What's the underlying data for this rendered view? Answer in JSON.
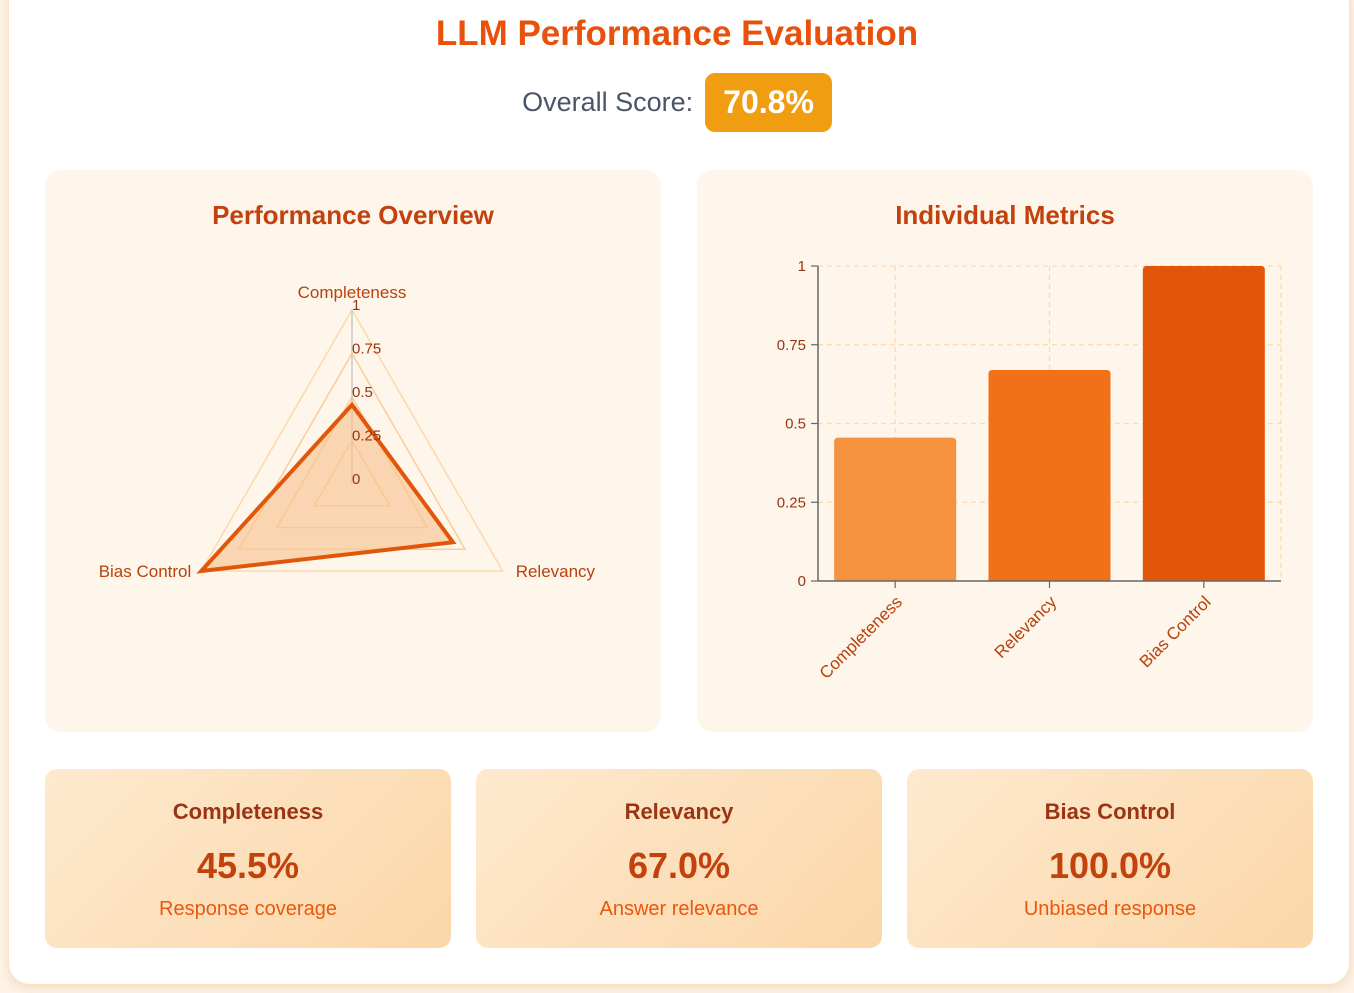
{
  "header": {
    "title": "LLM Performance Evaluation",
    "overall_label": "Overall Score:",
    "overall_value": "70.8%"
  },
  "colors": {
    "accent": "#e8500c",
    "badge": "#f09d12",
    "bars": [
      "#f5923d",
      "#f27118",
      "#e2560a"
    ],
    "radar_stroke": "#e2560a",
    "radar_fill": "#f7c08a"
  },
  "chart_data": [
    {
      "type": "radar",
      "title": "Performance Overview",
      "categories": [
        "Completeness",
        "Relevancy",
        "Bias Control"
      ],
      "values": [
        0.455,
        0.67,
        1.0
      ],
      "ticks": [
        "0",
        "0.25",
        "0.5",
        "0.75",
        "1"
      ],
      "range": [
        0,
        1
      ]
    },
    {
      "type": "bar",
      "title": "Individual Metrics",
      "categories": [
        "Completeness",
        "Relevancy",
        "Bias Control"
      ],
      "values": [
        0.455,
        0.67,
        1.0
      ],
      "yticks": [
        "0",
        "0.25",
        "0.5",
        "0.75",
        "1"
      ],
      "ylim": [
        0,
        1
      ],
      "grid": true,
      "xlabel": "",
      "ylabel": ""
    }
  ],
  "cards": [
    {
      "title": "Completeness",
      "value": "45.5%",
      "desc": "Response coverage"
    },
    {
      "title": "Relevancy",
      "value": "67.0%",
      "desc": "Answer relevance"
    },
    {
      "title": "Bias Control",
      "value": "100.0%",
      "desc": "Unbiased response"
    }
  ]
}
